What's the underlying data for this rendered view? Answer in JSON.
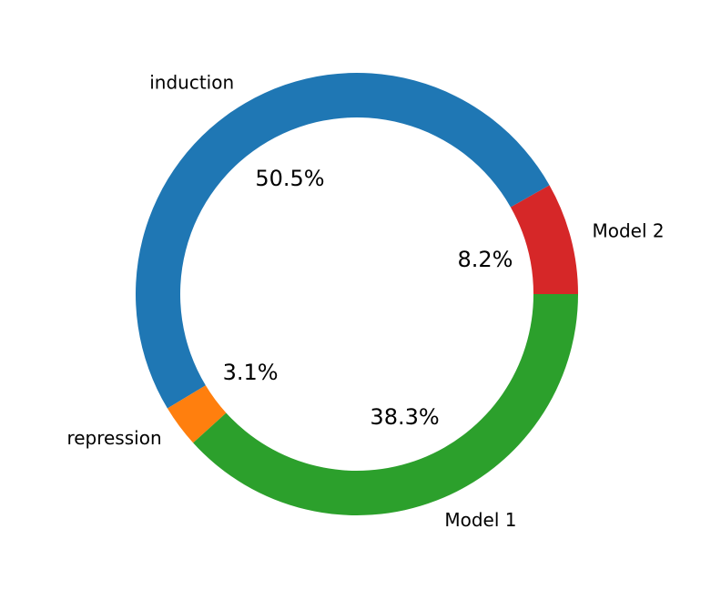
{
  "chart_data": {
    "type": "pie",
    "categories": [
      "Model 2",
      "induction",
      "repression",
      "Model 1"
    ],
    "values": [
      8.2,
      50.5,
      3.1,
      38.3
    ],
    "value_labels": [
      "8.2%",
      "50.5%",
      "3.1%",
      "38.3%"
    ],
    "colors": [
      "#d62728",
      "#1f77b4",
      "#ff7f0e",
      "#2ca02c"
    ]
  }
}
